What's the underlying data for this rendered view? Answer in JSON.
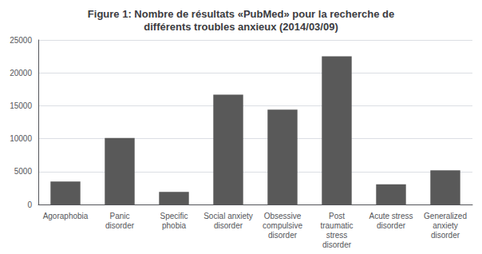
{
  "chart_data": {
    "type": "bar",
    "title": "Figure 1: Nombre de résultats «PubMed» pour la recherche de\ndifférents troubles anxieux (2014/03/09)",
    "categories": [
      "Agoraphobia",
      "Panic\ndisorder",
      "Specific\nphobia",
      "Social anxiety\ndisorder",
      "Obsessive\ncompulsive\ndisorder",
      "Post\ntraumatic\nstress\ndisorder",
      "Acute stress\ndisorder",
      "Generalized\nanxiety\ndisorder"
    ],
    "values": [
      3500,
      10100,
      1900,
      16700,
      14400,
      22500,
      3050,
      5200
    ],
    "color": "#595959",
    "ylim": [
      0,
      25000
    ],
    "yticks": [
      0,
      5000,
      10000,
      15000,
      20000,
      25000
    ],
    "grid": true
  }
}
